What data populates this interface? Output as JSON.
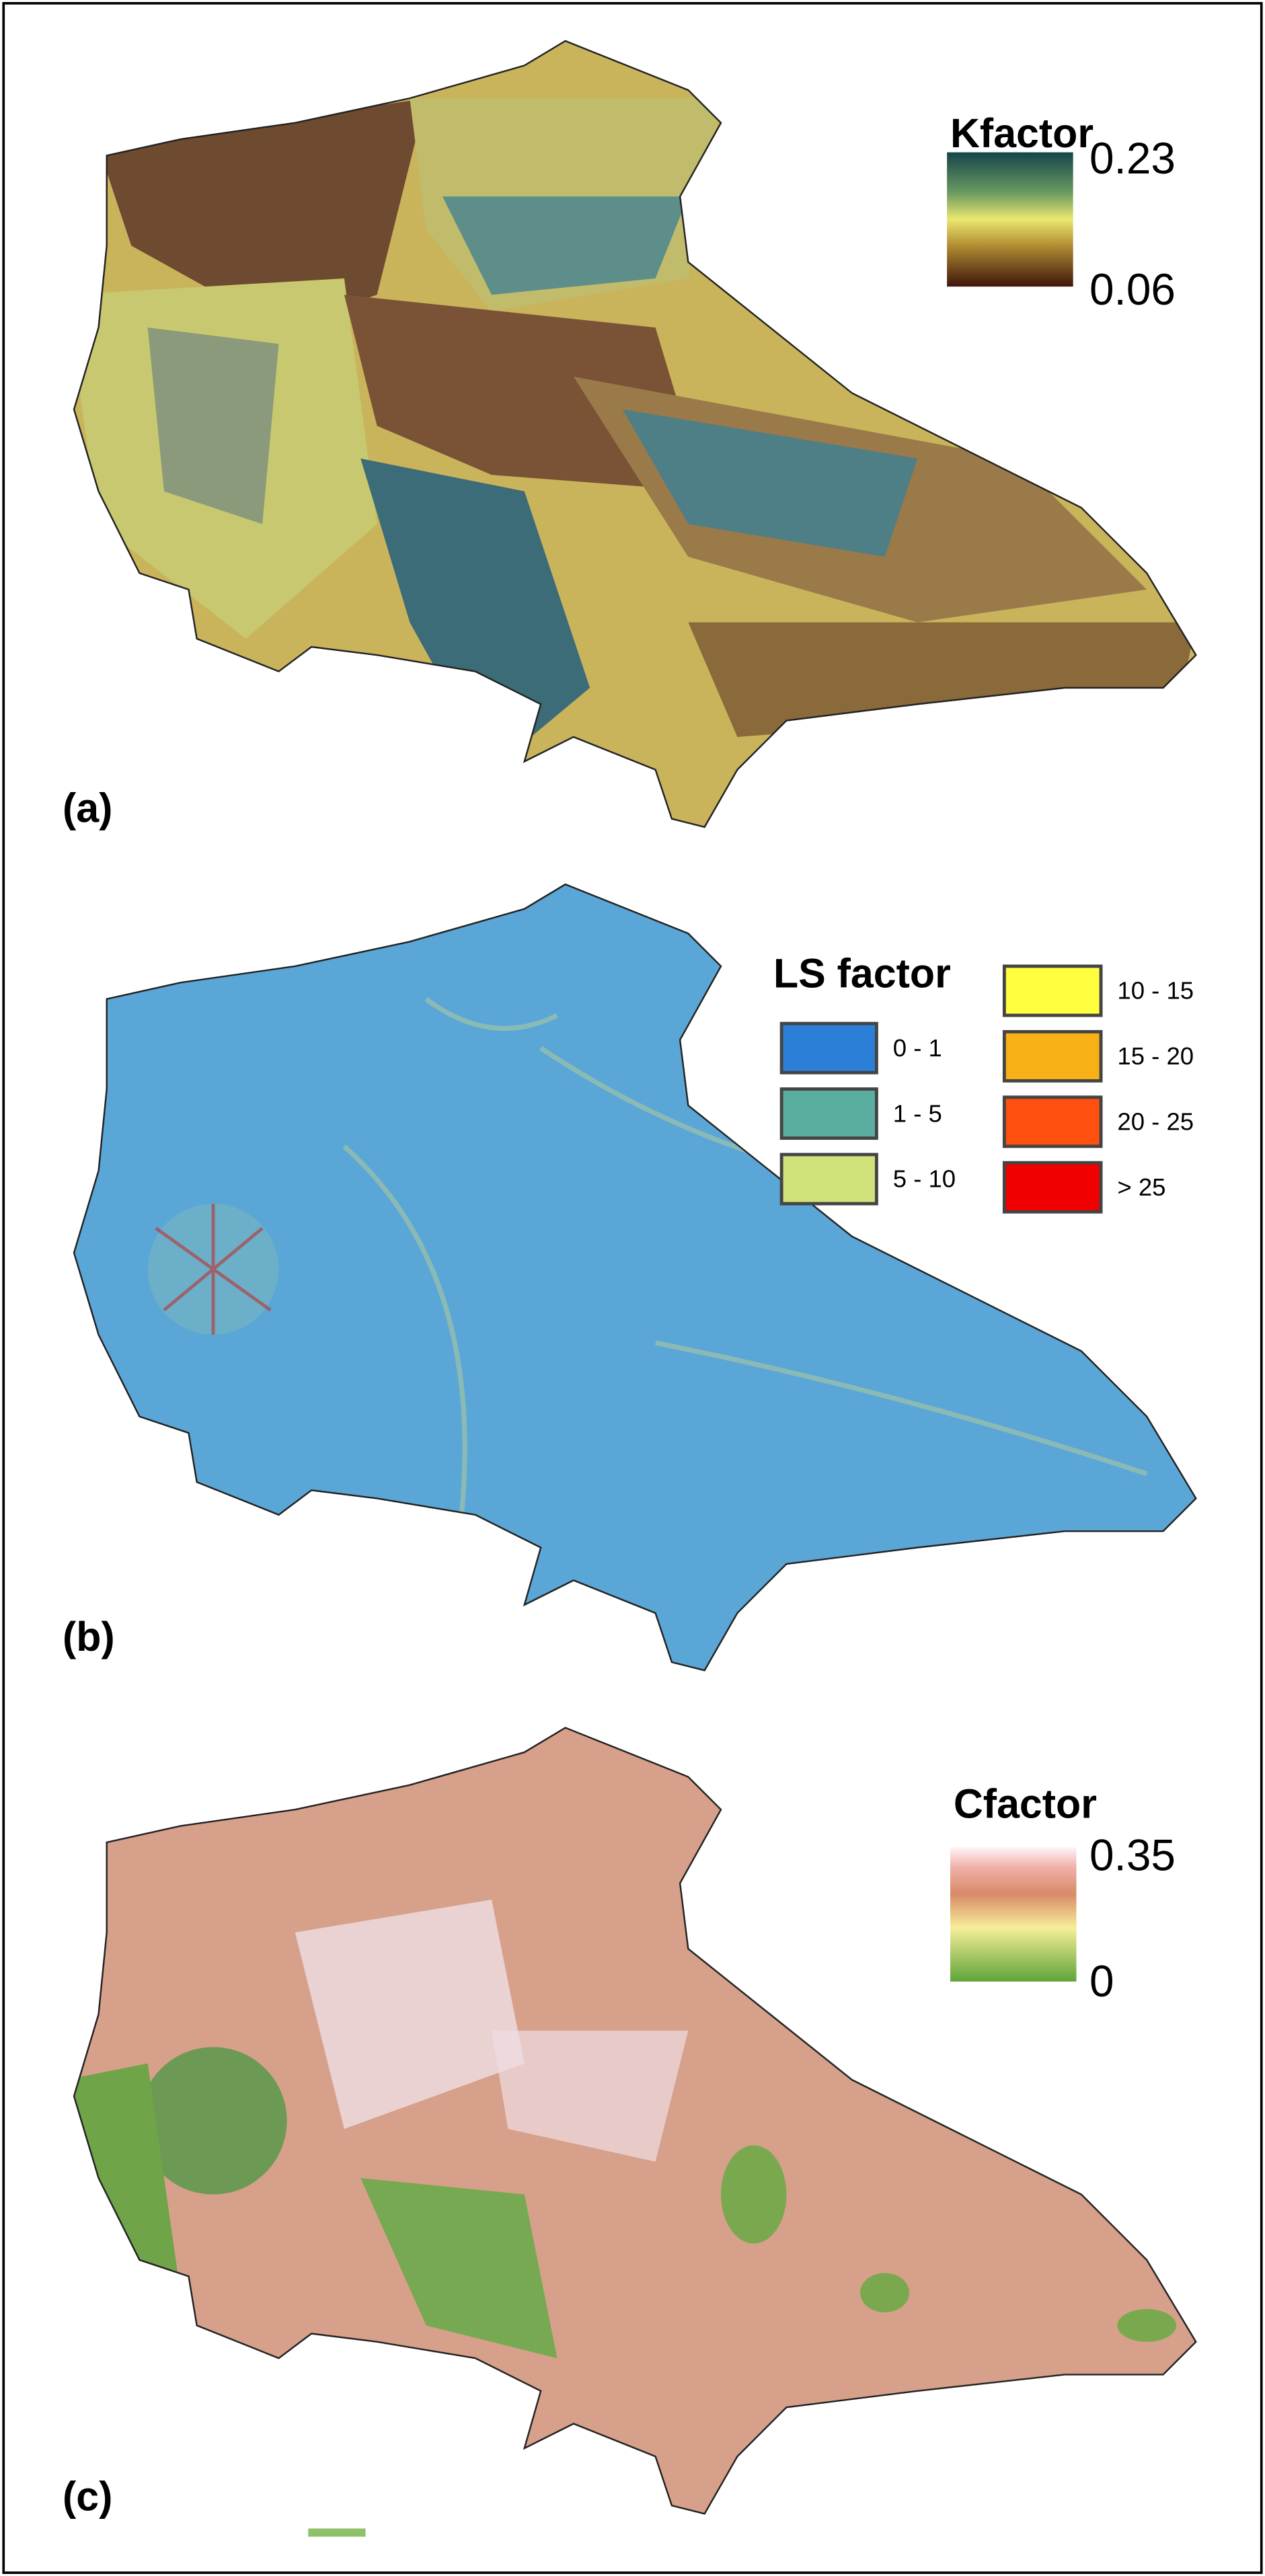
{
  "panels": [
    {
      "label": "(a)",
      "legend": {
        "title": "Kfactor",
        "max": "0.23",
        "min": "0.06"
      }
    },
    {
      "label": "(b)",
      "legend": {
        "title": "LS factor",
        "items": [
          "0 - 1",
          "1 - 5",
          "5 - 10",
          "10 - 15",
          "15 - 20",
          "20 - 25",
          "> 25"
        ]
      }
    },
    {
      "label": "(c)",
      "legend": {
        "title": "Cfactor",
        "max": "0.35",
        "min": "0"
      }
    }
  ]
}
